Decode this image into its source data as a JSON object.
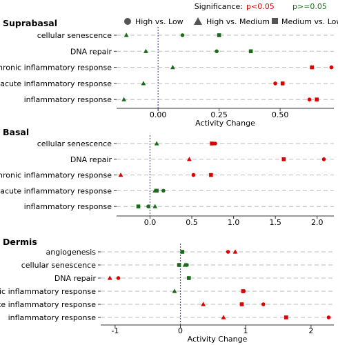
{
  "legend": {
    "significance_label": "Significance:",
    "sig_label": "p<0.05",
    "nonsig_label": "p>=0.05",
    "comparisons": [
      "High vs. Low",
      "High vs. Medium",
      "Medium vs. Low"
    ]
  },
  "colors": {
    "significant": "#dd0000",
    "not_significant": "#1a6b1a",
    "zero_line": "#4444dd",
    "grid": "#bbbbbb",
    "text": "#000000"
  },
  "chart_data": [
    {
      "type": "scatter",
      "title": "Suprabasal",
      "xlabel": "Activity Change",
      "xlim": [
        -0.17,
        0.72
      ],
      "xticks": [
        0.0,
        0.25,
        0.5
      ],
      "tick_labels": [
        "0.00",
        "0.25",
        "0.50"
      ],
      "categories": [
        "cellular senescence",
        "DNA repair",
        "chronic inflammatory response",
        "acute inflammatory response",
        "inflammatory response"
      ],
      "series": [
        {
          "name": "High vs. Low",
          "values": [
            0.1,
            0.24,
            0.71,
            0.48,
            0.62
          ],
          "significant": [
            false,
            false,
            true,
            true,
            true
          ]
        },
        {
          "name": "High vs. Medium",
          "values": [
            -0.13,
            -0.05,
            0.06,
            -0.06,
            -0.14
          ],
          "significant": [
            false,
            false,
            false,
            false,
            false
          ]
        },
        {
          "name": "Medium vs. Low",
          "values": [
            0.25,
            0.38,
            0.63,
            0.51,
            0.65
          ],
          "significant": [
            false,
            false,
            true,
            true,
            true
          ]
        }
      ]
    },
    {
      "type": "scatter",
      "title": "Basal",
      "xlabel": "",
      "xlim": [
        -0.4,
        2.2
      ],
      "xticks": [
        0.0,
        0.5,
        1.0,
        1.5,
        2.0
      ],
      "tick_labels": [
        "0.0",
        "0.5",
        "1.0",
        "1.5",
        "2.0"
      ],
      "categories": [
        "cellular senescence",
        "DNA repair",
        "chronic inflammatory response",
        "acute inflammatory response",
        "inflammatory response"
      ],
      "series": [
        {
          "name": "High vs. Low",
          "values": [
            0.78,
            2.08,
            0.52,
            0.16,
            -0.02
          ],
          "significant": [
            true,
            true,
            true,
            false,
            false
          ]
        },
        {
          "name": "High vs. Medium",
          "values": [
            0.08,
            0.47,
            -0.35,
            0.06,
            0.06
          ],
          "significant": [
            false,
            true,
            true,
            false,
            false
          ]
        },
        {
          "name": "Medium vs. Low",
          "values": [
            0.74,
            1.6,
            0.73,
            0.08,
            -0.14
          ],
          "significant": [
            true,
            true,
            true,
            false,
            false
          ]
        }
      ]
    },
    {
      "type": "scatter",
      "title": "Dermis",
      "xlabel": "Activity Change",
      "xlim": [
        -1.22,
        2.35
      ],
      "xticks": [
        -1,
        0,
        1,
        2
      ],
      "tick_labels": [
        "-1",
        "0",
        "1",
        "2"
      ],
      "categories": [
        "angiogenesis",
        "cellular senescence",
        "DNA repair",
        "chronic inflammatory response",
        "acute inflammatory response",
        "inflammatory response"
      ],
      "series": [
        {
          "name": "High vs. Low",
          "values": [
            0.73,
            0.1,
            -0.95,
            0.97,
            1.27,
            2.27
          ],
          "significant": [
            true,
            false,
            true,
            true,
            true,
            true
          ]
        },
        {
          "name": "High vs. Medium",
          "values": [
            0.84,
            0.07,
            -1.08,
            -0.09,
            0.35,
            0.66
          ],
          "significant": [
            true,
            false,
            true,
            false,
            true,
            true
          ]
        },
        {
          "name": "Medium vs. Low",
          "values": [
            0.03,
            -0.02,
            0.13,
            0.96,
            0.94,
            1.62
          ],
          "significant": [
            false,
            false,
            false,
            true,
            true,
            true
          ]
        }
      ]
    }
  ]
}
